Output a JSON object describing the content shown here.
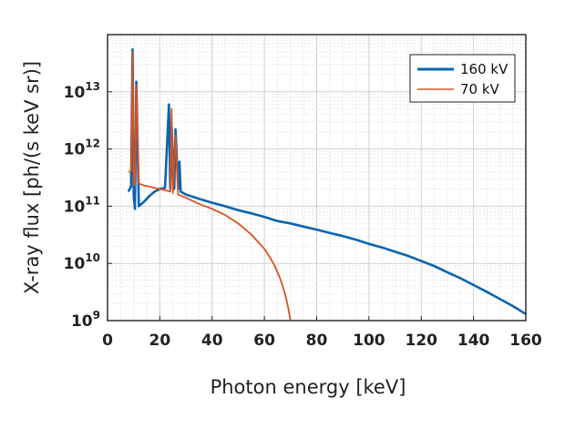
{
  "chart_data": {
    "type": "line",
    "title": "",
    "xlabel": "Photon energy [keV]",
    "ylabel": "X-ray flux [ph/(s keV sr)]",
    "xlim": [
      0,
      160
    ],
    "ylim": [
      1000000000.0,
      100000000000000.0
    ],
    "y_scale": "log",
    "x_ticks": [
      0,
      20,
      40,
      60,
      80,
      100,
      120,
      140,
      160
    ],
    "y_tick_labels": [
      {
        "base": "10",
        "exp": "9",
        "value": 1000000000.0
      },
      {
        "base": "10",
        "exp": "10",
        "value": 10000000000.0
      },
      {
        "base": "10",
        "exp": "11",
        "value": 100000000000.0
      },
      {
        "base": "10",
        "exp": "12",
        "value": 1000000000000.0
      },
      {
        "base": "10",
        "exp": "13",
        "value": 10000000000000.0
      }
    ],
    "grid": true,
    "legend_position": "top-right",
    "series": [
      {
        "name": "160 kV",
        "color": "#0b64b0",
        "x": [
          8,
          9,
          9.6,
          10,
          10.5,
          11,
          12,
          14,
          16,
          18,
          20,
          22,
          23.5,
          24,
          24.5,
          25.5,
          26,
          27,
          27.5,
          28,
          30,
          35,
          40,
          45,
          50,
          55,
          60,
          65,
          70,
          75,
          80,
          85,
          90,
          95,
          100,
          105,
          110,
          115,
          120,
          125,
          130,
          135,
          140,
          145,
          150,
          155,
          160
        ],
        "y": [
          180000000000.0,
          220000000000.0,
          55000000000000.0,
          150000000000.0,
          90000000000.0,
          15000000000000.0,
          100000000000.0,
          120000000000.0,
          150000000000.0,
          180000000000.0,
          200000000000.0,
          210000000000.0,
          6000000000000.0,
          200000000000.0,
          2500000000000.0,
          200000000000.0,
          2200000000000.0,
          200000000000.0,
          600000000000.0,
          180000000000.0,
          160000000000.0,
          135000000000.0,
          115000000000.0,
          100000000000.0,
          85000000000.0,
          75000000000.0,
          65000000000.0,
          55000000000.0,
          50000000000.0,
          44000000000.0,
          39000000000.0,
          34000000000.0,
          30000000000.0,
          26000000000.0,
          22000000000.0,
          19000000000.0,
          16000000000.0,
          13500000000.0,
          11000000000.0,
          9000000000.0,
          7000000000.0,
          5500000000.0,
          4200000000.0,
          3200000000.0,
          2400000000.0,
          1800000000.0,
          1300000000.0
        ]
      },
      {
        "name": "70 kV",
        "color": "#d9531e",
        "x": [
          8,
          9,
          9.6,
          10,
          10.5,
          11,
          12,
          14,
          16,
          18,
          20,
          22,
          24,
          24.5,
          25,
          26,
          27,
          30,
          35,
          40,
          45,
          50,
          55,
          60,
          62,
          64,
          66,
          67,
          68,
          69,
          70
        ],
        "y": [
          400000000000.0,
          400000000000.0,
          50000000000000.0,
          250000000000.0,
          230000000000.0,
          13000000000000.0,
          250000000000.0,
          230000000000.0,
          220000000000.0,
          210000000000.0,
          200000000000.0,
          190000000000.0,
          180000000000.0,
          5000000000000.0,
          170000000000.0,
          1700000000000.0,
          160000000000.0,
          140000000000.0,
          110000000000.0,
          90000000000.0,
          70000000000.0,
          50000000000.0,
          32000000000.0,
          18000000000.0,
          13000000000.0,
          9000000000.0,
          5500000000.0,
          4000000000.0,
          2800000000.0,
          1800000000.0,
          1000000000.0
        ]
      }
    ]
  }
}
